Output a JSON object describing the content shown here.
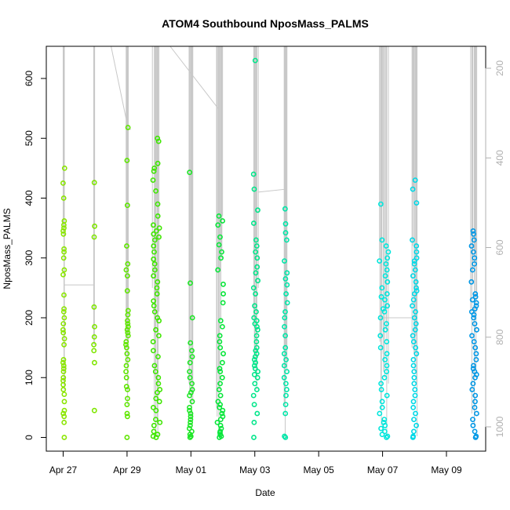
{
  "chart_data": {
    "type": "scatter",
    "title": "ATOM4 Southbound NposMass_PALMS",
    "xlabel": "Date",
    "ylabel": "NposMass_PALMS",
    "xlim_days": [
      -0.3,
      12.65
    ],
    "ylim": [
      -20,
      655
    ],
    "right_ylim_reversed": [
      1035,
      155
    ],
    "x_ticks": [
      {
        "day": 0,
        "label": "Apr 27"
      },
      {
        "day": 2,
        "label": "Apr 29"
      },
      {
        "day": 4,
        "label": "May 01"
      },
      {
        "day": 6,
        "label": "May 03"
      },
      {
        "day": 8,
        "label": "May 05"
      },
      {
        "day": 10,
        "label": "May 07"
      },
      {
        "day": 12,
        "label": "May 09"
      }
    ],
    "y_ticks": [
      0,
      100,
      200,
      300,
      400,
      500,
      600
    ],
    "right_ticks": [
      200,
      400,
      600,
      800,
      1000
    ],
    "colors": {
      "points_start": "#80e600",
      "points_mid": "#00e640",
      "points_cyan": "#00e6e6",
      "points_end": "#0090e6",
      "track": "#c8c8c8",
      "box": "#000000"
    },
    "clusters": [
      {
        "day": 0.02,
        "width": 0.05,
        "color": "#8ae600",
        "values": [
          0,
          25,
          35,
          40,
          45,
          60,
          72,
          80,
          88,
          95,
          100,
          110,
          115,
          120,
          125,
          130,
          155,
          165,
          175,
          180,
          190,
          200,
          210,
          215,
          238,
          272,
          280,
          300,
          310,
          315,
          340,
          345,
          350,
          355,
          362,
          400,
          425,
          450
        ]
      },
      {
        "day": 0.97,
        "width": 0.03,
        "color": "#7fe600",
        "values": [
          45,
          125,
          145,
          155,
          168,
          185,
          218,
          335,
          353,
          426
        ]
      },
      {
        "day": 2.0,
        "width": 0.07,
        "color": "#5fe600",
        "values": [
          0,
          35,
          40,
          55,
          65,
          80,
          85,
          100,
          110,
          120,
          130,
          140,
          150,
          155,
          160,
          170,
          175,
          180,
          185,
          190,
          195,
          205,
          212,
          245,
          270,
          280,
          290,
          320,
          388,
          463,
          518
        ]
      },
      {
        "day": 2.92,
        "width": 0.22,
        "color": "#3fe600",
        "values": [
          0,
          2,
          5,
          10,
          20,
          25,
          30,
          45,
          50,
          60,
          65,
          75,
          80,
          90,
          100,
          110,
          120,
          135,
          145,
          160,
          170,
          180,
          195,
          200,
          210,
          220,
          228,
          240,
          250,
          260,
          270,
          280,
          290,
          298,
          310,
          320,
          330,
          335,
          340,
          345,
          350,
          355,
          370,
          390,
          412,
          430,
          445,
          450,
          458,
          495,
          500
        ]
      },
      {
        "day": 4.0,
        "width": 0.1,
        "color": "#1ee626",
        "values": [
          0,
          2,
          5,
          10,
          15,
          20,
          25,
          30,
          35,
          40,
          45,
          50,
          60,
          70,
          75,
          80,
          90,
          100,
          110,
          125,
          135,
          145,
          158,
          200,
          258,
          443
        ]
      },
      {
        "day": 4.92,
        "width": 0.2,
        "color": "#08e63a",
        "values": [
          0,
          2,
          5,
          8,
          10,
          15,
          20,
          25,
          30,
          35,
          40,
          45,
          50,
          55,
          60,
          70,
          80,
          90,
          100,
          110,
          115,
          125,
          140,
          150,
          160,
          170,
          185,
          195,
          225,
          240,
          256,
          280,
          300,
          310,
          322,
          335,
          355,
          362,
          370
        ]
      },
      {
        "day": 6.03,
        "width": 0.14,
        "color": "#00e68a",
        "values": [
          0,
          25,
          40,
          55,
          70,
          80,
          90,
          100,
          105,
          110,
          115,
          120,
          125,
          130,
          135,
          140,
          145,
          150,
          160,
          170,
          180,
          185,
          190,
          195,
          200,
          210,
          220,
          240,
          250,
          262,
          275,
          285,
          300,
          310,
          320,
          330,
          358,
          380,
          415,
          440,
          630
        ]
      },
      {
        "day": 6.97,
        "width": 0.1,
        "color": "#00e6a8",
        "values": [
          0,
          2,
          40,
          55,
          70,
          80,
          90,
          100,
          110,
          120,
          130,
          140,
          150,
          170,
          185,
          200,
          210,
          225,
          240,
          255,
          265,
          275,
          295,
          330,
          342,
          357,
          382
        ]
      },
      {
        "day": 10.04,
        "width": 0.28,
        "color": "#00e6dc",
        "values": [
          0,
          2,
          5,
          10,
          15,
          20,
          25,
          30,
          40,
          50,
          60,
          70,
          80,
          90,
          100,
          110,
          120,
          130,
          140,
          150,
          160,
          170,
          180,
          190,
          200,
          210,
          215,
          220,
          230,
          235,
          240,
          250,
          260,
          270,
          280,
          290,
          295,
          300,
          310,
          320,
          330,
          390
        ]
      },
      {
        "day": 11.0,
        "width": 0.14,
        "color": "#00d8e6",
        "values": [
          0,
          2,
          10,
          20,
          30,
          40,
          50,
          60,
          70,
          80,
          90,
          100,
          110,
          120,
          130,
          140,
          150,
          160,
          170,
          180,
          190,
          200,
          210,
          220,
          230,
          240,
          245,
          250,
          260,
          270,
          280,
          290,
          295,
          300,
          310,
          320,
          330,
          392,
          415,
          430
        ]
      },
      {
        "day": 12.86,
        "width": 0.18,
        "color": "#0098e6",
        "values": [
          0,
          2,
          10,
          20,
          30,
          40,
          50,
          60,
          70,
          80,
          90,
          100,
          105,
          110,
          115,
          120,
          130,
          140,
          150,
          160,
          170,
          180,
          190,
          200,
          205,
          210,
          215,
          220,
          225,
          230,
          235,
          240,
          260,
          280,
          290,
          300,
          310,
          320,
          330,
          340,
          345
        ]
      }
    ]
  }
}
